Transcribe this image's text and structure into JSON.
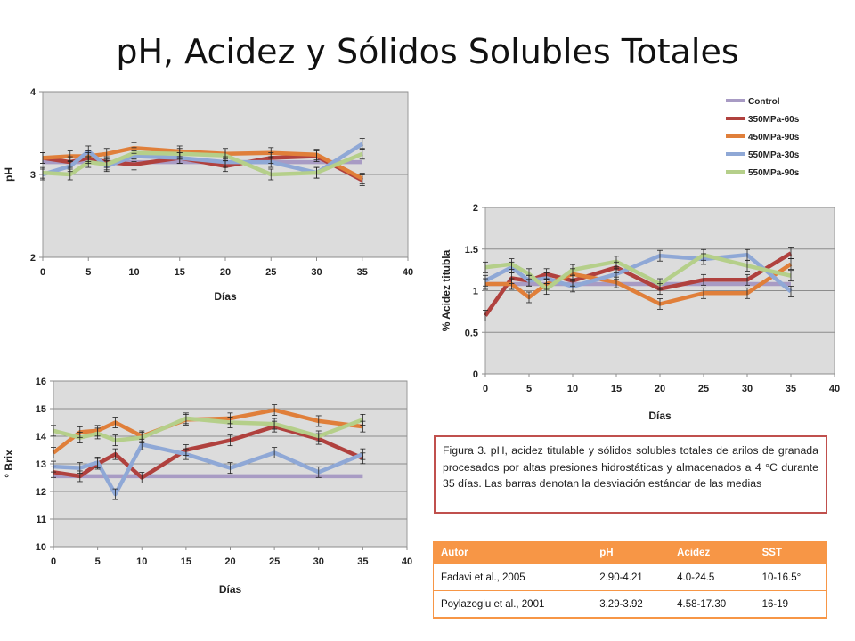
{
  "title": "pH, Acidez y Sólidos Solubles Totales",
  "legend": [
    {
      "name": "Control",
      "color": "#a89bc4"
    },
    {
      "name": "350MPa-60s",
      "color": "#b0413e"
    },
    {
      "name": "450MPa-90s",
      "color": "#e07f3a"
    },
    {
      "name": "550MPa-30s",
      "color": "#8fa8d6"
    },
    {
      "name": "550MPa-90s",
      "color": "#b5cf8a"
    }
  ],
  "caption": "Figura 3. pH, acidez titulable y sólidos solubles totales de arilos de granada procesados por altas presiones hidrostáticas y almacenados a 4 °C durante 35 días. Las barras denotan la desviación estándar de las medias",
  "table": {
    "headers": [
      "Autor",
      "pH",
      "Acidez",
      "SST"
    ],
    "rows": [
      [
        "Fadavi et al., 2005",
        "2.90-4.21",
        "4.0-24.5",
        "10-16.5°"
      ],
      [
        "Poylazoglu et al., 2001",
        "3.29-3.92",
        "4.58-17.30",
        "16-19"
      ]
    ]
  },
  "chart_data": [
    {
      "type": "line",
      "xlabel": "Días",
      "ylabel": "pH",
      "xlim": [
        0,
        40
      ],
      "ylim": [
        2,
        4
      ],
      "xticks": [
        "0",
        "5",
        "10",
        "15",
        "20",
        "25",
        "30",
        "35",
        "40"
      ],
      "yticks": [
        "2",
        "3",
        "4"
      ],
      "x": [
        0,
        3,
        5,
        7,
        10,
        15,
        20,
        25,
        30,
        35
      ],
      "series": [
        {
          "name": "Control",
          "values": [
            3.15,
            3.15,
            3.15,
            3.15,
            3.15,
            3.15,
            3.15,
            3.15,
            3.15,
            3.15
          ]
        },
        {
          "name": "350MPa-60s",
          "values": [
            3.2,
            3.15,
            3.2,
            3.15,
            3.12,
            3.2,
            3.1,
            3.2,
            3.22,
            2.93
          ]
        },
        {
          "name": "450MPa-90s",
          "values": [
            3.2,
            3.22,
            3.22,
            3.25,
            3.32,
            3.28,
            3.25,
            3.26,
            3.24,
            2.95
          ]
        },
        {
          "name": "550MPa-30s",
          "values": [
            3.0,
            3.1,
            3.28,
            3.1,
            3.22,
            3.2,
            3.15,
            3.15,
            3.02,
            3.37
          ]
        },
        {
          "name": "550MPa-90s",
          "values": [
            3.02,
            3.0,
            3.15,
            3.12,
            3.26,
            3.25,
            3.23,
            3.0,
            3.02,
            3.25
          ]
        }
      ]
    },
    {
      "type": "line",
      "xlabel": "Días",
      "ylabel": "% Acidez titubla",
      "xlim": [
        0,
        40
      ],
      "ylim": [
        0,
        2
      ],
      "xticks": [
        "0",
        "5",
        "10",
        "15",
        "20",
        "25",
        "30",
        "35",
        "40"
      ],
      "yticks": [
        "0",
        "0.5",
        "1",
        "1.5",
        "2"
      ],
      "x": [
        0,
        3,
        5,
        7,
        10,
        15,
        20,
        25,
        30,
        35
      ],
      "series": [
        {
          "name": "Control",
          "values": [
            1.08,
            1.08,
            1.08,
            1.08,
            1.08,
            1.08,
            1.08,
            1.08,
            1.08,
            1.08
          ]
        },
        {
          "name": "350MPa-60s",
          "values": [
            0.7,
            1.15,
            1.12,
            1.2,
            1.12,
            1.28,
            1.02,
            1.13,
            1.13,
            1.45
          ]
        },
        {
          "name": "450MPa-90s",
          "values": [
            1.08,
            1.08,
            0.92,
            1.08,
            1.2,
            1.1,
            0.84,
            0.97,
            0.97,
            1.32
          ]
        },
        {
          "name": "550MPa-30s",
          "values": [
            1.12,
            1.28,
            1.12,
            1.15,
            1.05,
            1.2,
            1.42,
            1.38,
            1.43,
            0.99
          ]
        },
        {
          "name": "550MPa-90s",
          "values": [
            1.28,
            1.32,
            1.2,
            1.02,
            1.25,
            1.35,
            1.08,
            1.43,
            1.3,
            1.18
          ]
        }
      ]
    },
    {
      "type": "line",
      "xlabel": "Días",
      "ylabel": "° Brix",
      "xlim": [
        0,
        40
      ],
      "ylim": [
        10,
        16
      ],
      "xticks": [
        "0",
        "5",
        "10",
        "15",
        "20",
        "25",
        "30",
        "35",
        "40"
      ],
      "yticks": [
        "10",
        "11",
        "12",
        "13",
        "14",
        "15",
        "16"
      ],
      "x": [
        0,
        3,
        5,
        7,
        10,
        15,
        20,
        25,
        30,
        35
      ],
      "series": [
        {
          "name": "Control",
          "values": [
            12.55,
            12.55,
            12.55,
            12.55,
            12.55,
            12.55,
            12.55,
            12.55,
            12.55,
            12.55
          ]
        },
        {
          "name": "350MPa-60s",
          "values": [
            12.7,
            12.55,
            13.0,
            13.35,
            12.5,
            13.5,
            13.85,
            14.35,
            13.9,
            13.2
          ]
        },
        {
          "name": "450MPa-90s",
          "values": [
            13.4,
            14.15,
            14.2,
            14.5,
            14.0,
            14.6,
            14.65,
            14.95,
            14.55,
            14.35
          ]
        },
        {
          "name": "550MPa-30s",
          "values": [
            12.9,
            12.85,
            13.05,
            11.9,
            13.7,
            13.35,
            12.85,
            13.4,
            12.7,
            13.35
          ]
        },
        {
          "name": "550MPa-90s",
          "values": [
            14.2,
            13.95,
            14.1,
            13.85,
            13.95,
            14.65,
            14.5,
            14.45,
            14.0,
            14.6
          ]
        }
      ]
    }
  ]
}
